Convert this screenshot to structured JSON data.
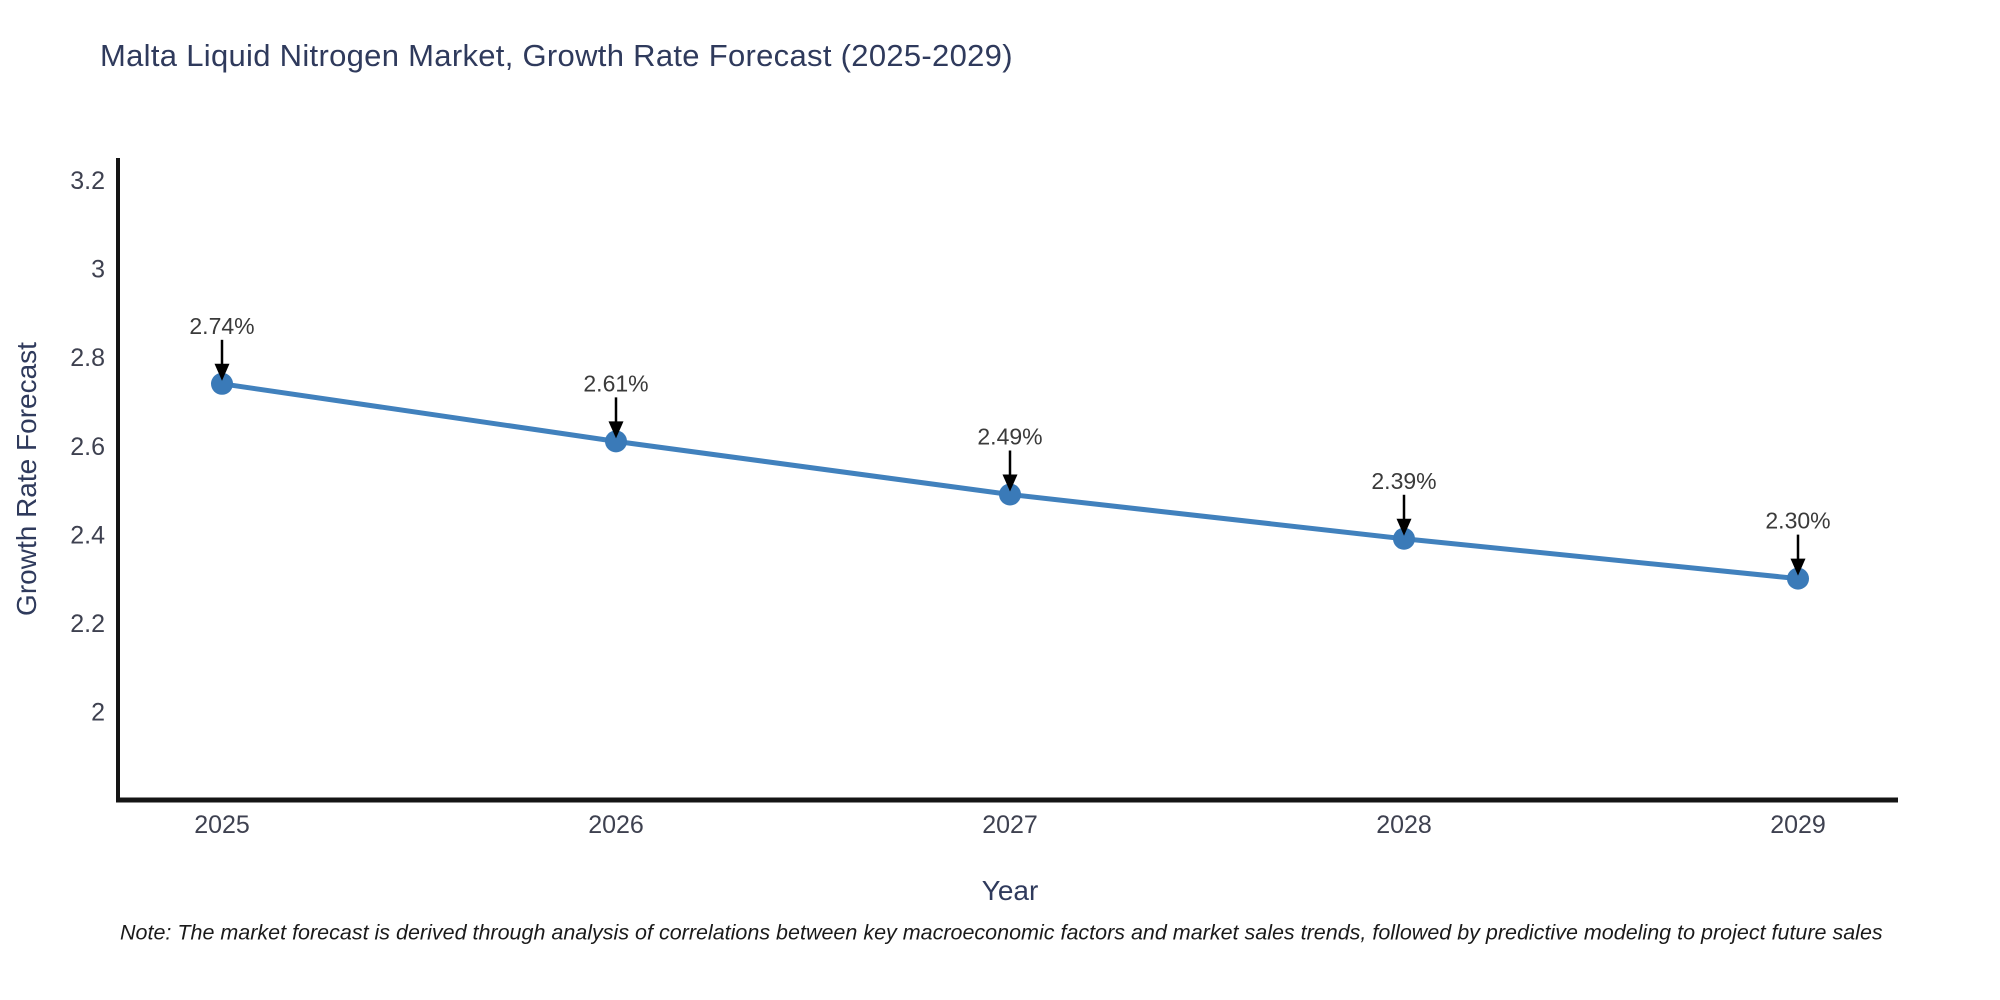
{
  "title": "Malta Liquid Nitrogen Market, Growth Rate Forecast (2025-2029)",
  "note": "Note: The market forecast is derived through analysis of correlations between key macroeconomic factors and market sales trends, followed by predictive modeling to project future sales",
  "colors": {
    "line": "#4181bd",
    "marker": "#3a7ab8",
    "axis": "#151515",
    "tick_label": "#3e4150",
    "axis_title": "#2f3a5c",
    "title": "#2f3a5c",
    "annotation": "#3a3a3a",
    "arrow": "#000000"
  },
  "chart_data": {
    "type": "line",
    "title": "Malta Liquid Nitrogen Market, Growth Rate Forecast (2025-2029)",
    "x": [
      "2025",
      "2026",
      "2027",
      "2028",
      "2029"
    ],
    "series": [
      {
        "name": "Growth Rate Forecast",
        "values": [
          2.74,
          2.61,
          2.49,
          2.39,
          2.3
        ]
      }
    ],
    "point_labels": [
      "2.74%",
      "2.61%",
      "2.49%",
      "2.39%",
      "2.30%"
    ],
    "xlabel": "Year",
    "ylabel": "Growth Rate Forecast",
    "ylim": [
      1.8,
      3.25
    ],
    "yticks": {
      "values": [
        3.2,
        3.0,
        2.8,
        2.6,
        2.4,
        2.2,
        2.0
      ],
      "labels": [
        "3.2",
        "3",
        "2.8",
        "2.6",
        "2.4",
        "2.2",
        "2"
      ]
    },
    "grid": false,
    "legend": false
  }
}
